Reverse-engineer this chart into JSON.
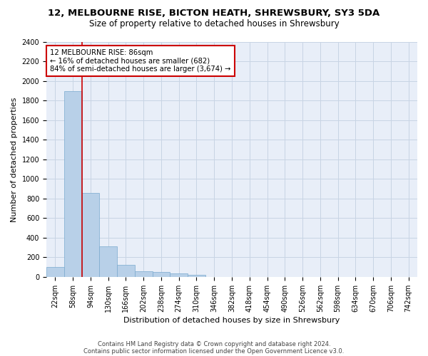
{
  "title": "12, MELBOURNE RISE, BICTON HEATH, SHREWSBURY, SY3 5DA",
  "subtitle": "Size of property relative to detached houses in Shrewsbury",
  "xlabel": "Distribution of detached houses by size in Shrewsbury",
  "ylabel": "Number of detached properties",
  "bar_color": "#b8d0e8",
  "bar_edge_color": "#7aaace",
  "categories": [
    "22sqm",
    "58sqm",
    "94sqm",
    "130sqm",
    "166sqm",
    "202sqm",
    "238sqm",
    "274sqm",
    "310sqm",
    "346sqm",
    "382sqm",
    "418sqm",
    "454sqm",
    "490sqm",
    "526sqm",
    "562sqm",
    "598sqm",
    "634sqm",
    "670sqm",
    "706sqm",
    "742sqm"
  ],
  "values": [
    100,
    1900,
    860,
    315,
    120,
    60,
    50,
    35,
    20,
    0,
    0,
    0,
    0,
    0,
    0,
    0,
    0,
    0,
    0,
    0,
    0
  ],
  "ylim": [
    0,
    2400
  ],
  "yticks": [
    0,
    200,
    400,
    600,
    800,
    1000,
    1200,
    1400,
    1600,
    1800,
    2000,
    2200,
    2400
  ],
  "annotation_text": "12 MELBOURNE RISE: 86sqm\n← 16% of detached houses are smaller (682)\n84% of semi-detached houses are larger (3,674) →",
  "annotation_box_color": "#ffffff",
  "annotation_box_edge": "#cc0000",
  "vline_color": "#cc0000",
  "footer1": "Contains HM Land Registry data © Crown copyright and database right 2024.",
  "footer2": "Contains public sector information licensed under the Open Government Licence v3.0.",
  "background_color": "#e8eef8",
  "grid_color": "#c8d4e4",
  "title_fontsize": 9.5,
  "subtitle_fontsize": 8.5,
  "tick_fontsize": 7,
  "label_fontsize": 8,
  "footer_fontsize": 6
}
